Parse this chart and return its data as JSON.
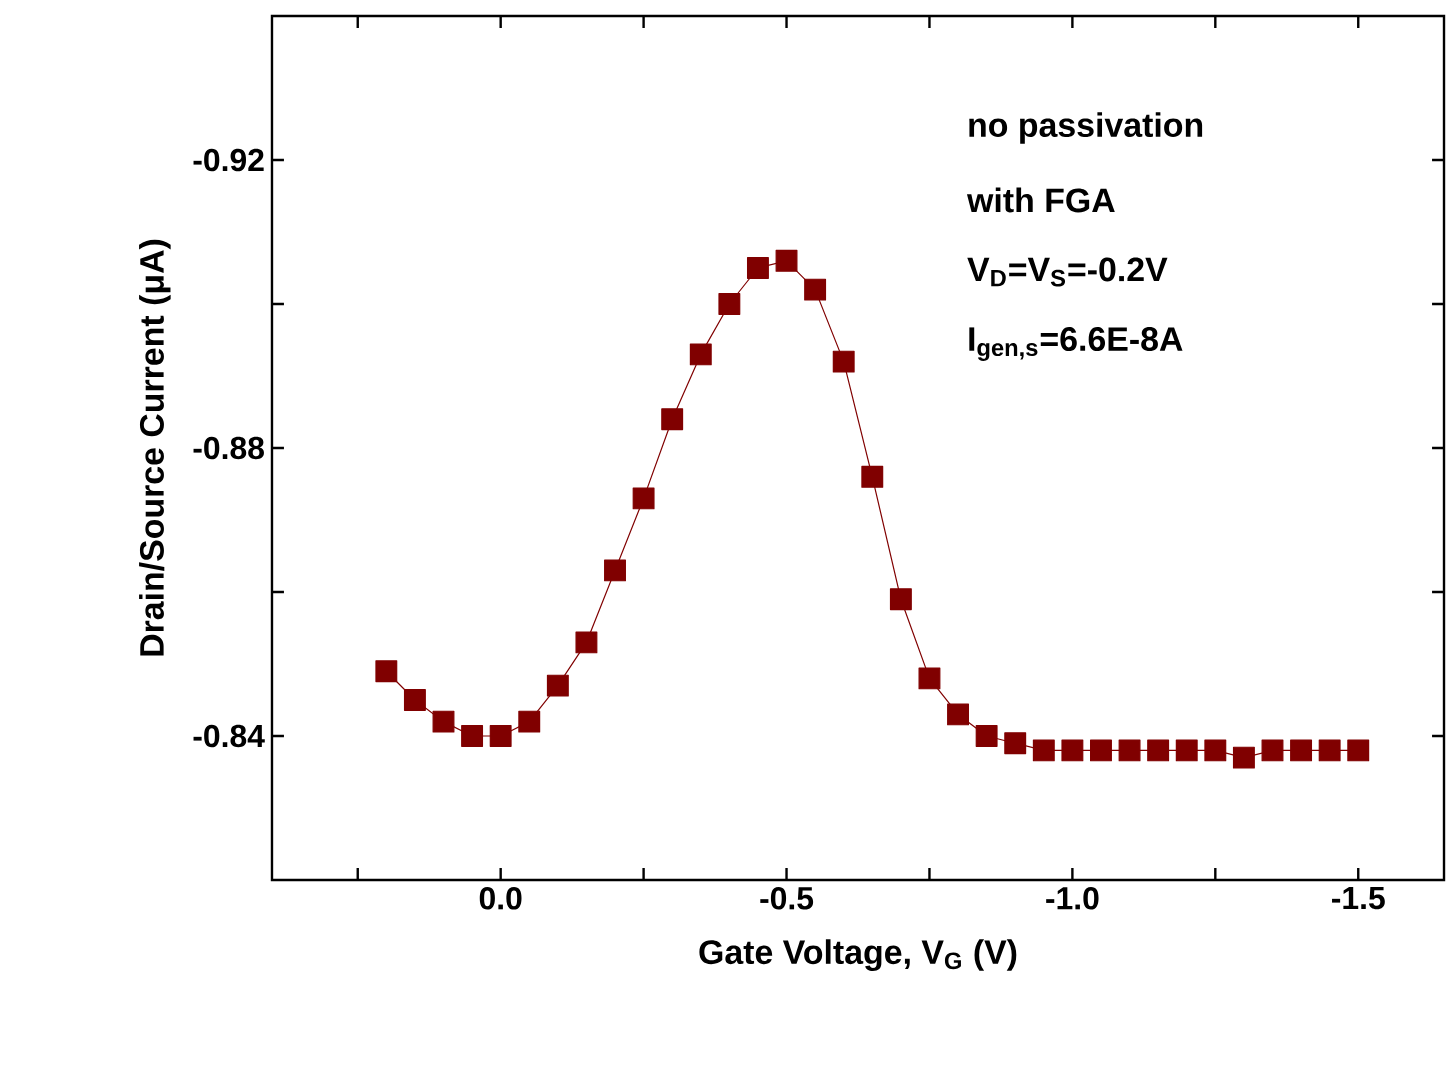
{
  "chart_data": {
    "type": "line",
    "xlabel": "Gate Voltage, V$_{G}$ (V)",
    "ylabel": "Drain/Source Current (μA)",
    "annotations": [
      "no passivation",
      "with FGA",
      "V$_{D}$=V$_{S}$=-0.2V",
      "I$_{gen,s}$=6.6E-8A"
    ],
    "x": [
      0.2,
      0.15,
      0.1,
      0.05,
      0.0,
      -0.05,
      -0.1,
      -0.15,
      -0.2,
      -0.25,
      -0.3,
      -0.35,
      -0.4,
      -0.45,
      -0.5,
      -0.55,
      -0.6,
      -0.65,
      -0.7,
      -0.75,
      -0.8,
      -0.85,
      -0.9,
      -0.95,
      -1.0,
      -1.05,
      -1.1,
      -1.15,
      -1.2,
      -1.25,
      -1.3,
      -1.35,
      -1.4,
      -1.45,
      -1.5
    ],
    "series": [
      {
        "color": "#800000",
        "values": [
          -0.849,
          -0.845,
          -0.842,
          -0.84,
          -0.84,
          -0.842,
          -0.847,
          -0.853,
          -0.863,
          -0.873,
          -0.884,
          -0.893,
          -0.9,
          -0.905,
          -0.906,
          -0.902,
          -0.892,
          -0.876,
          -0.859,
          -0.848,
          -0.843,
          -0.84,
          -0.839,
          -0.838,
          -0.838,
          -0.838,
          -0.838,
          -0.838,
          -0.838,
          -0.838,
          -0.837,
          -0.838,
          -0.838,
          -0.838,
          -0.838
        ]
      }
    ],
    "xlim": [
      0.4,
      -1.65
    ],
    "ylim": [
      -0.82,
      -0.94
    ],
    "xticks": [
      {
        "value": 0.25,
        "label": null
      },
      {
        "value": 0.0,
        "label": "0.0"
      },
      {
        "value": -0.25,
        "label": null
      },
      {
        "value": -0.5,
        "label": "-0.5"
      },
      {
        "value": -0.75,
        "label": null
      },
      {
        "value": -1.0,
        "label": "-1.0"
      },
      {
        "value": -1.25,
        "label": null
      },
      {
        "value": -1.5,
        "label": "-1.5"
      }
    ],
    "yticks": [
      {
        "value": -0.84,
        "label": "-0.84"
      },
      {
        "value": -0.86,
        "label": null
      },
      {
        "value": -0.88,
        "label": "-0.88"
      },
      {
        "value": -0.9,
        "label": null
      },
      {
        "value": -0.92,
        "label": "-0.92"
      }
    ],
    "marker": "square",
    "line_style": "solid",
    "grid": false
  }
}
